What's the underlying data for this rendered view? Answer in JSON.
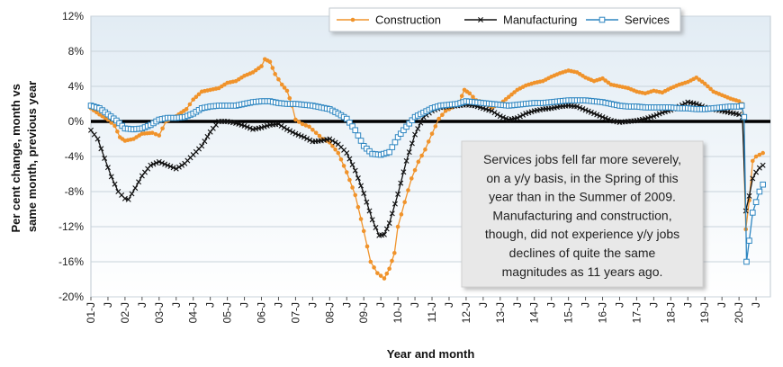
{
  "chart_data": {
    "type": "line",
    "xlabel": "Year and month",
    "ylabel_lines": [
      "Per cent change, month vs",
      "same month, previous year"
    ],
    "ylim": [
      -20,
      12
    ],
    "yticks": [
      -20,
      -16,
      -12,
      -8,
      -4,
      0,
      4,
      8,
      12
    ],
    "ytick_labels": [
      "-20%",
      "-16%",
      "-12%",
      "-8%",
      "-4%",
      "0%",
      "4%",
      "8%",
      "12%"
    ],
    "xlim": [
      2001.0,
      2020.75
    ],
    "xticks": [
      2001.0,
      2001.5,
      2002.0,
      2002.5,
      2003.0,
      2003.5,
      2004.0,
      2004.5,
      2005.0,
      2005.5,
      2006.0,
      2006.5,
      2007.0,
      2007.5,
      2008.0,
      2008.5,
      2009.0,
      2009.5,
      2010.0,
      2010.5,
      2011.0,
      2011.5,
      2012.0,
      2012.5,
      2013.0,
      2013.5,
      2014.0,
      2014.5,
      2015.0,
      2015.5,
      2016.0,
      2016.5,
      2017.0,
      2017.5,
      2018.0,
      2018.5,
      2019.0,
      2019.5,
      2020.0,
      2020.5
    ],
    "xtick_labels": [
      "01-J",
      "J",
      "02-J",
      "J",
      "03-J",
      "J",
      "04-J",
      "J",
      "05-J",
      "J",
      "06-J",
      "J",
      "07-J",
      "J",
      "08-J",
      "J",
      "09-J",
      "J",
      "10-J",
      "J",
      "11-J",
      "J",
      "12-J",
      "J",
      "13-J",
      "J",
      "14-J",
      "J",
      "15-J",
      "J",
      "16-J",
      "J",
      "17-J",
      "J",
      "18-J",
      "J",
      "19-J",
      "J",
      "20-J",
      "J"
    ],
    "legend_position": "top-center",
    "grid": "horizontal",
    "series": [
      {
        "name": "Construction",
        "color": "#f0932b",
        "marker": "dot",
        "points": [
          [
            2001.0,
            1.5
          ],
          [
            2001.25,
            0.8
          ],
          [
            2001.5,
            0.2
          ],
          [
            2001.7,
            -0.5
          ],
          [
            2001.85,
            -1.8
          ],
          [
            2002.0,
            -2.2
          ],
          [
            2002.25,
            -2.0
          ],
          [
            2002.5,
            -1.4
          ],
          [
            2002.8,
            -1.3
          ],
          [
            2003.0,
            -1.6
          ],
          [
            2003.2,
            0.0
          ],
          [
            2003.5,
            0.6
          ],
          [
            2003.8,
            1.4
          ],
          [
            2004.0,
            2.5
          ],
          [
            2004.25,
            3.4
          ],
          [
            2004.5,
            3.6
          ],
          [
            2004.75,
            3.8
          ],
          [
            2005.0,
            4.4
          ],
          [
            2005.25,
            4.6
          ],
          [
            2005.5,
            5.2
          ],
          [
            2005.75,
            5.6
          ],
          [
            2006.0,
            6.3
          ],
          [
            2006.1,
            7.1
          ],
          [
            2006.25,
            6.8
          ],
          [
            2006.4,
            5.4
          ],
          [
            2006.6,
            4.2
          ],
          [
            2006.75,
            3.5
          ],
          [
            2006.9,
            1.8
          ],
          [
            2007.0,
            0.2
          ],
          [
            2007.2,
            -0.3
          ],
          [
            2007.4,
            -0.6
          ],
          [
            2007.6,
            -1.3
          ],
          [
            2007.8,
            -2.0
          ],
          [
            2008.0,
            -2.4
          ],
          [
            2008.25,
            -3.6
          ],
          [
            2008.5,
            -5.8
          ],
          [
            2008.75,
            -8.4
          ],
          [
            2009.0,
            -12.5
          ],
          [
            2009.2,
            -16.0
          ],
          [
            2009.4,
            -17.3
          ],
          [
            2009.6,
            -17.9
          ],
          [
            2009.75,
            -16.8
          ],
          [
            2009.9,
            -15.0
          ],
          [
            2010.0,
            -12.0
          ],
          [
            2010.2,
            -9.2
          ],
          [
            2010.4,
            -6.5
          ],
          [
            2010.6,
            -4.6
          ],
          [
            2010.8,
            -3.2
          ],
          [
            2011.0,
            -1.4
          ],
          [
            2011.2,
            0.3
          ],
          [
            2011.4,
            1.2
          ],
          [
            2011.6,
            1.6
          ],
          [
            2011.8,
            2.2
          ],
          [
            2011.95,
            3.6
          ],
          [
            2012.1,
            3.2
          ],
          [
            2012.3,
            2.4
          ],
          [
            2012.5,
            2.2
          ],
          [
            2012.75,
            1.6
          ],
          [
            2013.0,
            2.0
          ],
          [
            2013.25,
            2.8
          ],
          [
            2013.5,
            3.6
          ],
          [
            2013.75,
            4.1
          ],
          [
            2014.0,
            4.4
          ],
          [
            2014.25,
            4.6
          ],
          [
            2014.5,
            5.1
          ],
          [
            2014.75,
            5.5
          ],
          [
            2015.0,
            5.8
          ],
          [
            2015.25,
            5.6
          ],
          [
            2015.5,
            5.0
          ],
          [
            2015.75,
            4.6
          ],
          [
            2016.0,
            4.9
          ],
          [
            2016.25,
            4.2
          ],
          [
            2016.5,
            4.0
          ],
          [
            2016.75,
            3.8
          ],
          [
            2017.0,
            3.4
          ],
          [
            2017.25,
            3.2
          ],
          [
            2017.5,
            3.5
          ],
          [
            2017.75,
            3.3
          ],
          [
            2018.0,
            3.8
          ],
          [
            2018.25,
            4.2
          ],
          [
            2018.5,
            4.5
          ],
          [
            2018.75,
            5.0
          ],
          [
            2019.0,
            4.3
          ],
          [
            2019.25,
            3.4
          ],
          [
            2019.5,
            3.0
          ],
          [
            2019.75,
            2.6
          ],
          [
            2020.0,
            2.3
          ],
          [
            2020.1,
            2.0
          ],
          [
            2020.2,
            -12.3
          ],
          [
            2020.3,
            -9.0
          ],
          [
            2020.4,
            -4.5
          ],
          [
            2020.5,
            -4.0
          ],
          [
            2020.6,
            -3.8
          ],
          [
            2020.7,
            -3.6
          ]
        ]
      },
      {
        "name": "Manufacturing",
        "color": "#111111",
        "marker": "x",
        "points": [
          [
            2001.0,
            -1.0
          ],
          [
            2001.2,
            -2.0
          ],
          [
            2001.4,
            -4.2
          ],
          [
            2001.6,
            -6.3
          ],
          [
            2001.8,
            -8.0
          ],
          [
            2002.0,
            -8.8
          ],
          [
            2002.1,
            -8.9
          ],
          [
            2002.3,
            -7.6
          ],
          [
            2002.5,
            -6.2
          ],
          [
            2002.75,
            -5.0
          ],
          [
            2003.0,
            -4.6
          ],
          [
            2003.25,
            -5.0
          ],
          [
            2003.5,
            -5.4
          ],
          [
            2003.75,
            -4.8
          ],
          [
            2004.0,
            -3.8
          ],
          [
            2004.25,
            -2.8
          ],
          [
            2004.5,
            -1.2
          ],
          [
            2004.75,
            0.0
          ],
          [
            2005.0,
            0.0
          ],
          [
            2005.25,
            -0.2
          ],
          [
            2005.5,
            -0.5
          ],
          [
            2005.75,
            -0.9
          ],
          [
            2006.0,
            -0.7
          ],
          [
            2006.25,
            -0.4
          ],
          [
            2006.5,
            -0.3
          ],
          [
            2006.75,
            -0.9
          ],
          [
            2007.0,
            -1.4
          ],
          [
            2007.25,
            -1.8
          ],
          [
            2007.5,
            -2.3
          ],
          [
            2007.75,
            -2.2
          ],
          [
            2008.0,
            -2.0
          ],
          [
            2008.25,
            -2.6
          ],
          [
            2008.5,
            -3.6
          ],
          [
            2008.75,
            -5.6
          ],
          [
            2009.0,
            -8.2
          ],
          [
            2009.25,
            -11.2
          ],
          [
            2009.45,
            -13.0
          ],
          [
            2009.6,
            -12.9
          ],
          [
            2009.75,
            -11.6
          ],
          [
            2010.0,
            -8.3
          ],
          [
            2010.25,
            -4.5
          ],
          [
            2010.5,
            -1.5
          ],
          [
            2010.75,
            0.5
          ],
          [
            2011.0,
            1.2
          ],
          [
            2011.25,
            1.6
          ],
          [
            2011.5,
            1.7
          ],
          [
            2011.75,
            1.8
          ],
          [
            2012.0,
            1.9
          ],
          [
            2012.25,
            1.8
          ],
          [
            2012.5,
            1.5
          ],
          [
            2012.75,
            1.2
          ],
          [
            2013.0,
            0.6
          ],
          [
            2013.25,
            0.2
          ],
          [
            2013.5,
            0.4
          ],
          [
            2013.75,
            0.9
          ],
          [
            2014.0,
            1.2
          ],
          [
            2014.25,
            1.4
          ],
          [
            2014.5,
            1.5
          ],
          [
            2014.75,
            1.7
          ],
          [
            2015.0,
            1.8
          ],
          [
            2015.25,
            1.7
          ],
          [
            2015.5,
            1.3
          ],
          [
            2015.75,
            0.9
          ],
          [
            2016.0,
            0.5
          ],
          [
            2016.25,
            0.1
          ],
          [
            2016.5,
            -0.1
          ],
          [
            2016.75,
            0.0
          ],
          [
            2017.0,
            0.1
          ],
          [
            2017.25,
            0.3
          ],
          [
            2017.5,
            0.6
          ],
          [
            2017.75,
            1.0
          ],
          [
            2018.0,
            1.3
          ],
          [
            2018.25,
            1.7
          ],
          [
            2018.5,
            2.2
          ],
          [
            2018.75,
            2.0
          ],
          [
            2019.0,
            1.6
          ],
          [
            2019.25,
            1.4
          ],
          [
            2019.5,
            1.2
          ],
          [
            2019.75,
            1.0
          ],
          [
            2020.0,
            0.8
          ],
          [
            2020.1,
            0.5
          ],
          [
            2020.2,
            -10.2
          ],
          [
            2020.3,
            -8.5
          ],
          [
            2020.4,
            -6.5
          ],
          [
            2020.5,
            -5.8
          ],
          [
            2020.6,
            -5.3
          ],
          [
            2020.7,
            -5.0
          ]
        ]
      },
      {
        "name": "Services",
        "color": "#2e86c1",
        "marker": "square",
        "points": [
          [
            2001.0,
            1.8
          ],
          [
            2001.25,
            1.5
          ],
          [
            2001.5,
            0.8
          ],
          [
            2001.75,
            0.1
          ],
          [
            2002.0,
            -0.8
          ],
          [
            2002.25,
            -0.9
          ],
          [
            2002.5,
            -0.8
          ],
          [
            2002.75,
            -0.4
          ],
          [
            2003.0,
            0.2
          ],
          [
            2003.25,
            0.4
          ],
          [
            2003.5,
            0.4
          ],
          [
            2003.75,
            0.5
          ],
          [
            2004.0,
            0.9
          ],
          [
            2004.25,
            1.5
          ],
          [
            2004.5,
            1.7
          ],
          [
            2004.75,
            1.8
          ],
          [
            2005.0,
            1.8
          ],
          [
            2005.25,
            1.8
          ],
          [
            2005.5,
            2.0
          ],
          [
            2005.75,
            2.2
          ],
          [
            2006.0,
            2.3
          ],
          [
            2006.25,
            2.3
          ],
          [
            2006.5,
            2.1
          ],
          [
            2006.75,
            2.0
          ],
          [
            2007.0,
            2.0
          ],
          [
            2007.25,
            1.9
          ],
          [
            2007.5,
            1.8
          ],
          [
            2007.75,
            1.6
          ],
          [
            2008.0,
            1.4
          ],
          [
            2008.25,
            0.9
          ],
          [
            2008.5,
            0.3
          ],
          [
            2008.75,
            -1.0
          ],
          [
            2009.0,
            -2.8
          ],
          [
            2009.25,
            -3.7
          ],
          [
            2009.5,
            -3.8
          ],
          [
            2009.75,
            -3.5
          ],
          [
            2010.0,
            -1.8
          ],
          [
            2010.25,
            -0.6
          ],
          [
            2010.5,
            0.5
          ],
          [
            2010.75,
            1.0
          ],
          [
            2011.0,
            1.5
          ],
          [
            2011.25,
            1.8
          ],
          [
            2011.5,
            1.9
          ],
          [
            2011.75,
            2.0
          ],
          [
            2012.0,
            2.3
          ],
          [
            2012.25,
            2.2
          ],
          [
            2012.5,
            2.1
          ],
          [
            2012.75,
            2.0
          ],
          [
            2013.0,
            1.9
          ],
          [
            2013.25,
            1.8
          ],
          [
            2013.5,
            1.9
          ],
          [
            2013.75,
            2.0
          ],
          [
            2014.0,
            2.1
          ],
          [
            2014.25,
            2.1
          ],
          [
            2014.5,
            2.2
          ],
          [
            2014.75,
            2.3
          ],
          [
            2015.0,
            2.4
          ],
          [
            2015.25,
            2.4
          ],
          [
            2015.5,
            2.4
          ],
          [
            2015.75,
            2.3
          ],
          [
            2016.0,
            2.2
          ],
          [
            2016.25,
            2.0
          ],
          [
            2016.5,
            1.8
          ],
          [
            2016.75,
            1.7
          ],
          [
            2017.0,
            1.7
          ],
          [
            2017.25,
            1.6
          ],
          [
            2017.5,
            1.6
          ],
          [
            2017.75,
            1.6
          ],
          [
            2018.0,
            1.6
          ],
          [
            2018.25,
            1.5
          ],
          [
            2018.5,
            1.5
          ],
          [
            2018.75,
            1.4
          ],
          [
            2019.0,
            1.4
          ],
          [
            2019.25,
            1.5
          ],
          [
            2019.5,
            1.6
          ],
          [
            2019.75,
            1.7
          ],
          [
            2020.0,
            1.7
          ],
          [
            2020.08,
            1.8
          ],
          [
            2020.15,
            0.5
          ],
          [
            2020.22,
            -16.0
          ],
          [
            2020.3,
            -13.6
          ],
          [
            2020.4,
            -10.4
          ],
          [
            2020.5,
            -9.2
          ],
          [
            2020.6,
            -8.0
          ],
          [
            2020.7,
            -7.2
          ]
        ]
      }
    ],
    "annotation": [
      "Services jobs fell far more severely,",
      "on a y/y basis, in the Spring of this",
      "year than in the Summer of 2009.",
      "Manufacturing and construction,",
      "though, did not experience y/y jobs",
      "declines of quite the same",
      "magnitudes as 11 years ago."
    ]
  }
}
